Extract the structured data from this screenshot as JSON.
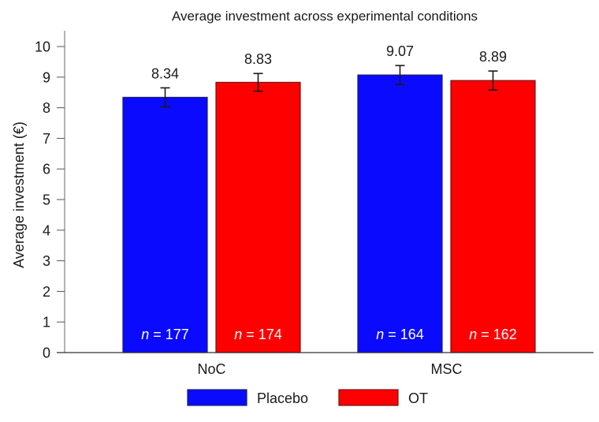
{
  "chart_data": {
    "type": "bar",
    "title": "Average investment across experimental conditions",
    "xlabel": "",
    "ylabel": "Average investment (€)",
    "ylim": [
      0,
      10
    ],
    "yticks": [
      0,
      1,
      2,
      3,
      4,
      5,
      6,
      7,
      8,
      9,
      10
    ],
    "ytick_labels": [
      "0",
      "1",
      "2",
      "3",
      "4",
      "5",
      "6",
      "7",
      "8",
      "9",
      "10"
    ],
    "categories": [
      "NoC",
      "MSC"
    ],
    "grid": false,
    "legend_position": "bottom-center",
    "series": [
      {
        "name": "Placebo",
        "color": "#0a0aff",
        "border_color": "#1a1a6e",
        "values": [
          8.34,
          9.07
        ],
        "value_labels": [
          "8.34",
          "9.07"
        ],
        "error": [
          0.31,
          0.31
        ],
        "n_prefix": "n",
        "n_values": [
          "= 177",
          "= 164"
        ]
      },
      {
        "name": "OT",
        "color": "#ff0000",
        "border_color": "#6e1414",
        "values": [
          8.83,
          8.89
        ],
        "value_labels": [
          "8.83",
          "8.89"
        ],
        "error": [
          0.29,
          0.31
        ],
        "n_prefix": "n",
        "n_values": [
          "= 174",
          "= 162"
        ]
      }
    ]
  }
}
